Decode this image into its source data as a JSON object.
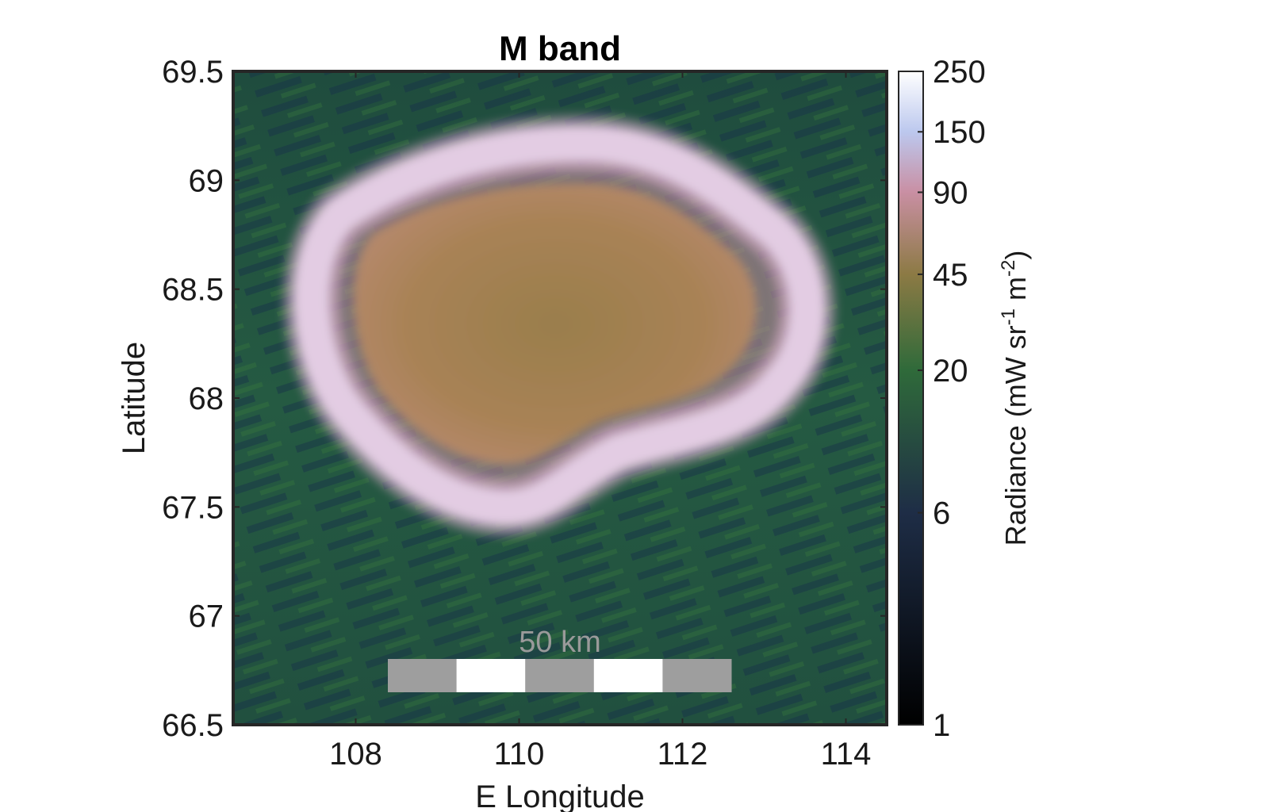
{
  "chart_data": {
    "type": "heatmap",
    "title": "M band",
    "xlabel": "E Longitude",
    "ylabel": "Latitude",
    "xlim": [
      106.5,
      114.5
    ],
    "ylim": [
      66.5,
      69.5
    ],
    "x_ticks": [
      108,
      110,
      112,
      114
    ],
    "x_tick_labels": [
      "108",
      "110",
      "112",
      "114"
    ],
    "y_ticks": [
      66.5,
      67,
      67.5,
      68,
      68.5,
      69,
      69.5
    ],
    "y_tick_labels": [
      "66.5",
      "67",
      "67.5",
      "68",
      "68.5",
      "69",
      "69.5"
    ],
    "feature": {
      "center_lon": 110.4,
      "center_lat": 68.3,
      "rim_radiance": 250,
      "interior_radiance": 45,
      "background_radiance": 15
    },
    "colorbar": {
      "label_text": "Radiance (mW sr",
      "label_sup1": "-1",
      "label_mid": " m",
      "label_sup2": "-2",
      "label_end": ")",
      "scale": "log",
      "range": [
        1,
        250
      ],
      "ticks": [
        1,
        6,
        20,
        45,
        90,
        150,
        250
      ],
      "tick_labels": [
        "1",
        "6",
        "20",
        "45",
        "90",
        "150",
        "250"
      ]
    },
    "scale_bar": {
      "label": "50 km",
      "colors": [
        "#9e9e9e",
        "#ffffff",
        "#9e9e9e",
        "#ffffff",
        "#9e9e9e"
      ]
    },
    "colormap": [
      {
        "value": 1,
        "color": "#000000"
      },
      {
        "value": 6,
        "color": "#1e2d46"
      },
      {
        "value": 20,
        "color": "#2f6a3a"
      },
      {
        "value": 45,
        "color": "#8c7a44"
      },
      {
        "value": 90,
        "color": "#c98fa3"
      },
      {
        "value": 150,
        "color": "#bcc8ee"
      },
      {
        "value": 250,
        "color": "#ffffff"
      }
    ]
  }
}
